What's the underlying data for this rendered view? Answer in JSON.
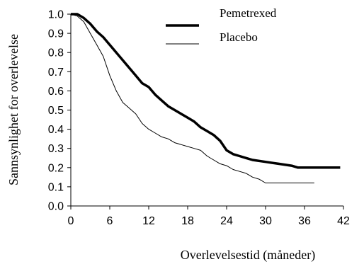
{
  "chart_data": {
    "type": "line",
    "title": "",
    "xlabel": "Overlevelsestid (måneder)",
    "ylabel": "Sannsynlighet for overlevelse",
    "xlim": [
      0,
      42
    ],
    "ylim": [
      0,
      1.0
    ],
    "x_ticks": [
      "0",
      "6",
      "12",
      "18",
      "24",
      "30",
      "36",
      "42"
    ],
    "y_ticks": [
      "0.0",
      "0.1",
      "0.2",
      "0.3",
      "0.4",
      "0.5",
      "0.6",
      "0.7",
      "0.8",
      "0.9",
      "1.0"
    ],
    "grid": false,
    "legend_position": "top-right",
    "series": [
      {
        "name": "Pemetrexed",
        "color": "#000000",
        "style": "thick",
        "points": [
          [
            0,
            1.0
          ],
          [
            1,
            1.0
          ],
          [
            2,
            0.98
          ],
          [
            3,
            0.95
          ],
          [
            4,
            0.91
          ],
          [
            5,
            0.88
          ],
          [
            6,
            0.84
          ],
          [
            7,
            0.8
          ],
          [
            8,
            0.76
          ],
          [
            9,
            0.72
          ],
          [
            10,
            0.68
          ],
          [
            11,
            0.64
          ],
          [
            12,
            0.62
          ],
          [
            13,
            0.58
          ],
          [
            14,
            0.55
          ],
          [
            15,
            0.52
          ],
          [
            16,
            0.5
          ],
          [
            17,
            0.48
          ],
          [
            18,
            0.46
          ],
          [
            19,
            0.44
          ],
          [
            20,
            0.41
          ],
          [
            21,
            0.39
          ],
          [
            22,
            0.37
          ],
          [
            23,
            0.34
          ],
          [
            24,
            0.29
          ],
          [
            25,
            0.27
          ],
          [
            26,
            0.26
          ],
          [
            27,
            0.25
          ],
          [
            28,
            0.24
          ],
          [
            30,
            0.23
          ],
          [
            32,
            0.22
          ],
          [
            34,
            0.21
          ],
          [
            35,
            0.2
          ],
          [
            38,
            0.2
          ],
          [
            41.5,
            0.2
          ]
        ]
      },
      {
        "name": "Placebo",
        "color": "#000000",
        "style": "thin",
        "points": [
          [
            0,
            1.0
          ],
          [
            1,
            0.99
          ],
          [
            2,
            0.96
          ],
          [
            3,
            0.9
          ],
          [
            4,
            0.84
          ],
          [
            5,
            0.78
          ],
          [
            6,
            0.68
          ],
          [
            7,
            0.6
          ],
          [
            8,
            0.54
          ],
          [
            9,
            0.51
          ],
          [
            10,
            0.48
          ],
          [
            11,
            0.43
          ],
          [
            12,
            0.4
          ],
          [
            13,
            0.38
          ],
          [
            14,
            0.36
          ],
          [
            15,
            0.35
          ],
          [
            16,
            0.33
          ],
          [
            17,
            0.32
          ],
          [
            18,
            0.31
          ],
          [
            19,
            0.3
          ],
          [
            20,
            0.29
          ],
          [
            21,
            0.26
          ],
          [
            22,
            0.24
          ],
          [
            23,
            0.22
          ],
          [
            24,
            0.21
          ],
          [
            25,
            0.19
          ],
          [
            26,
            0.18
          ],
          [
            27,
            0.17
          ],
          [
            28,
            0.15
          ],
          [
            29,
            0.14
          ],
          [
            30,
            0.12
          ],
          [
            32,
            0.12
          ],
          [
            35,
            0.12
          ],
          [
            37.5,
            0.12
          ]
        ]
      }
    ]
  }
}
